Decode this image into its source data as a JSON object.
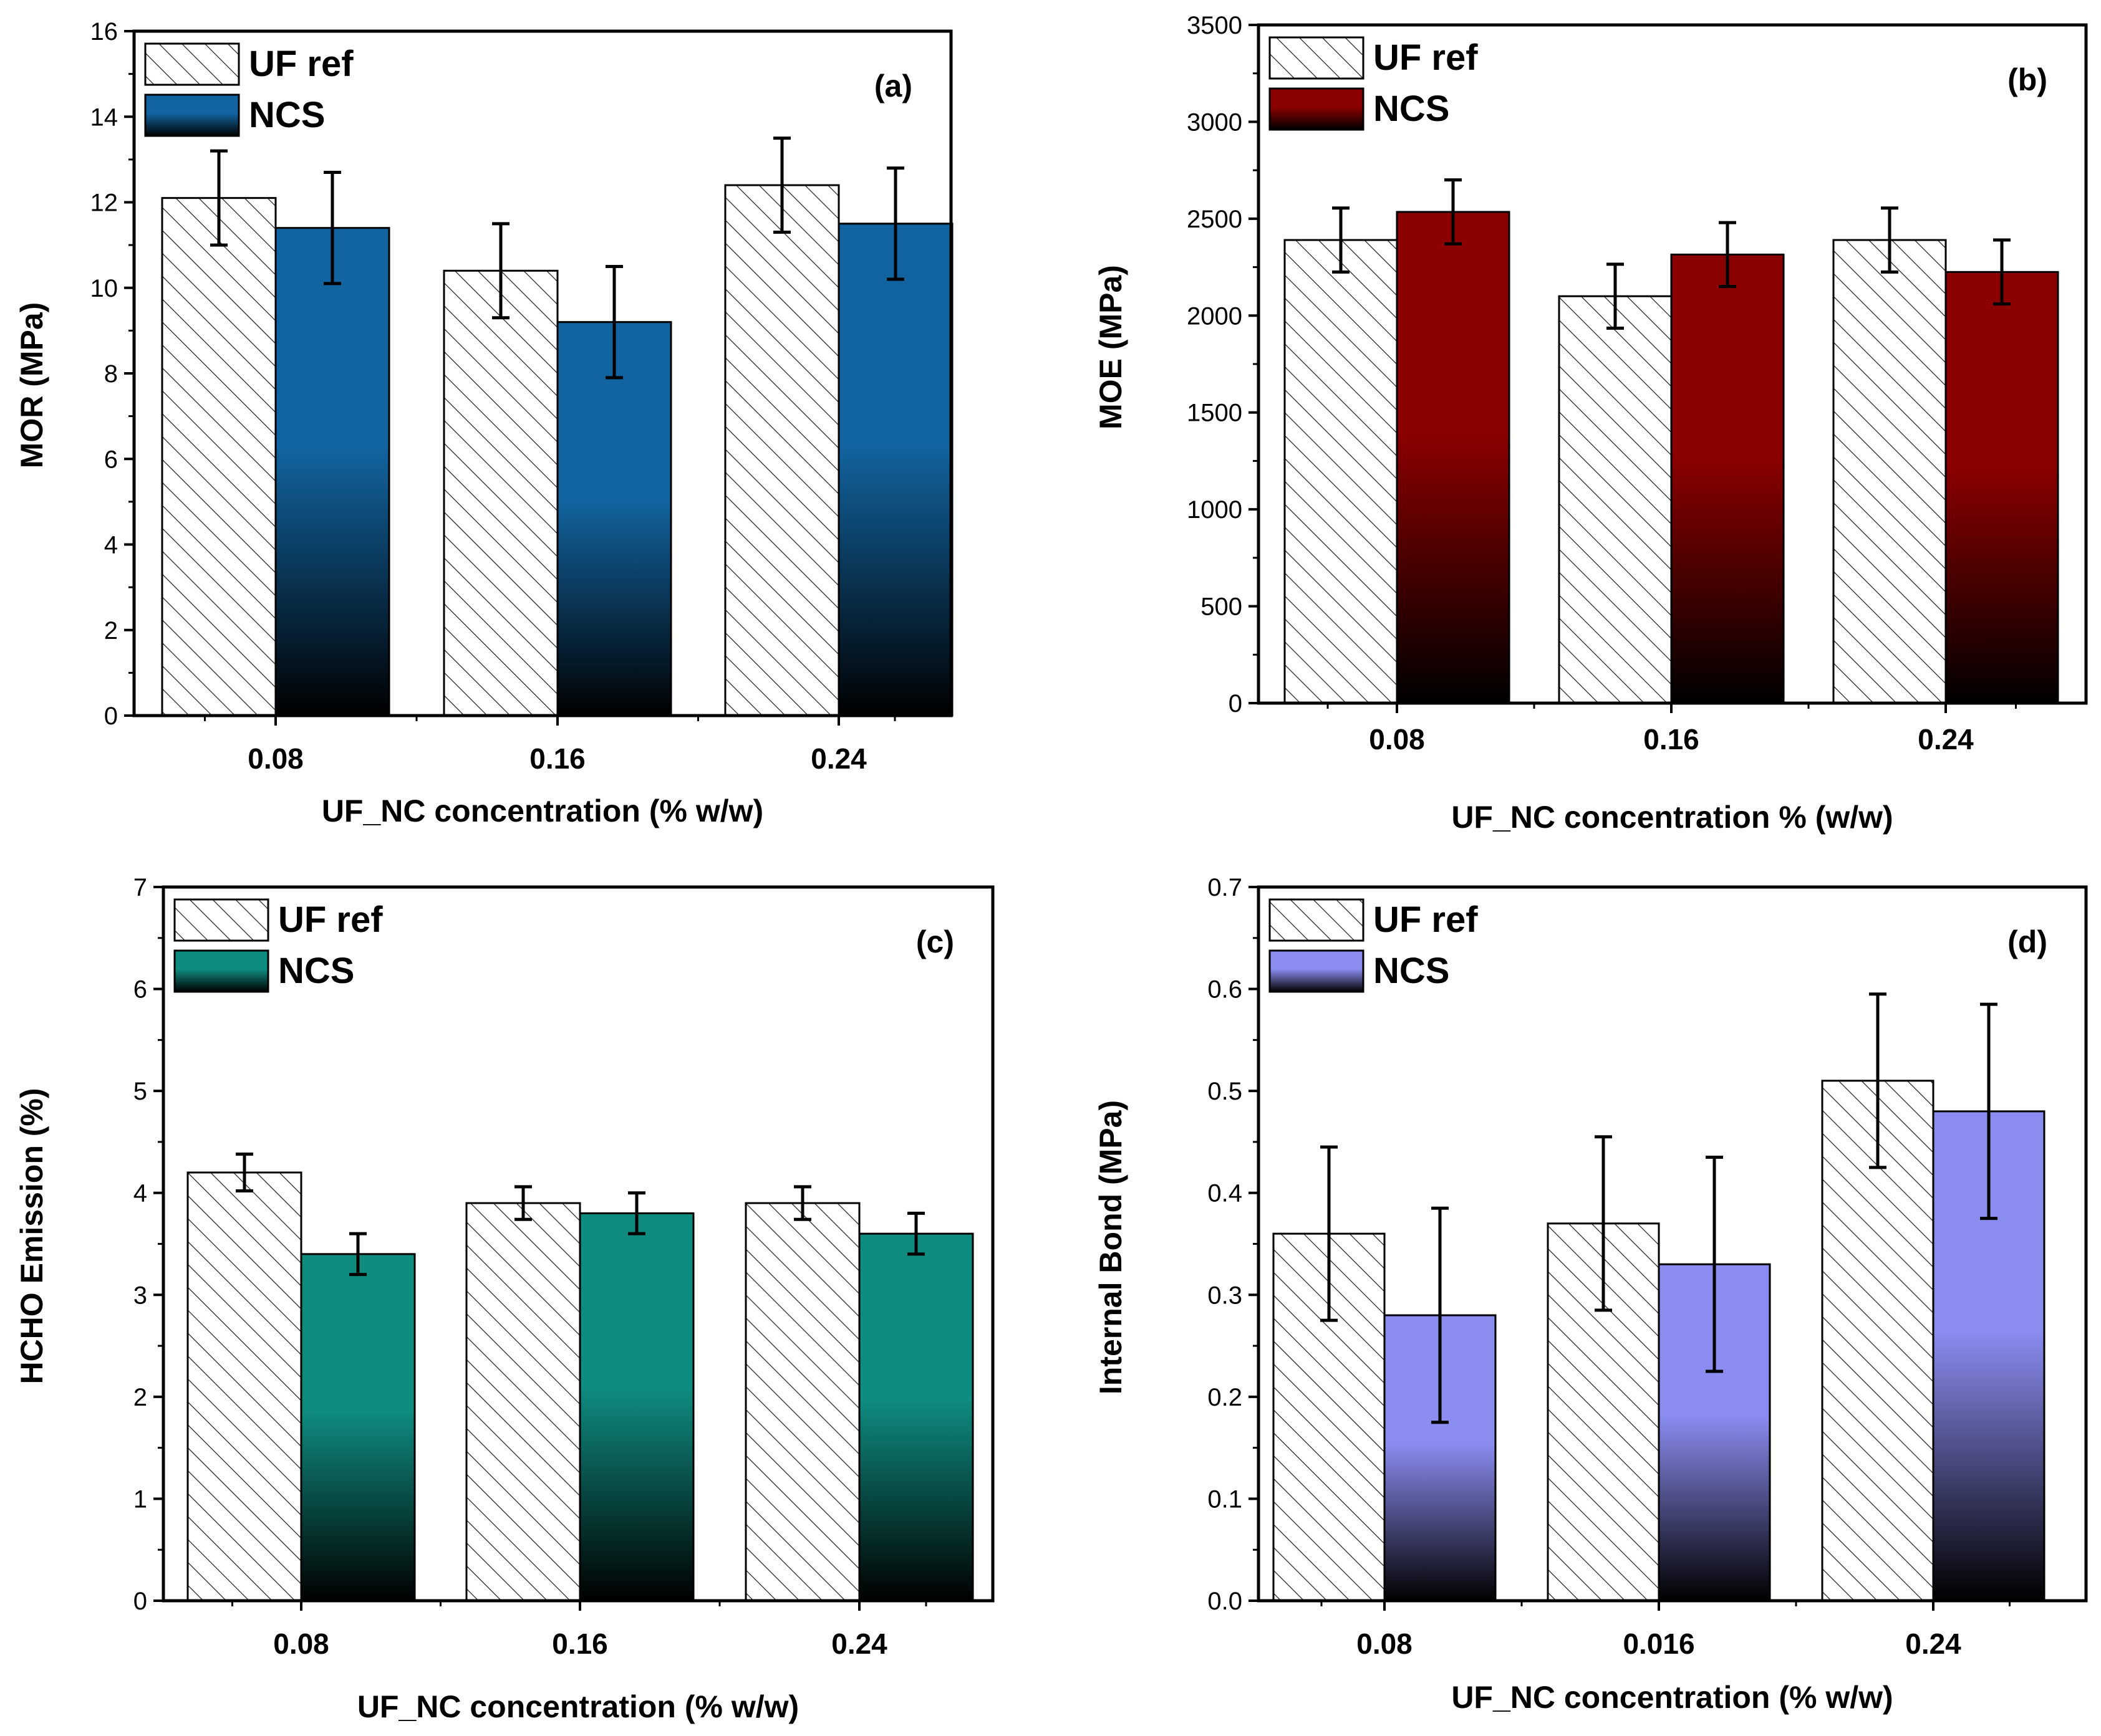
{
  "chart_data": [
    {
      "id": "a",
      "type": "bar",
      "panel_label": "(a)",
      "xlabel": "UF_NC concentration (% w/w)",
      "ylabel": "MOR (MPa)",
      "categories": [
        "0.08",
        "0.16",
        "0.24"
      ],
      "ylim": [
        0,
        16
      ],
      "yticks": [
        0,
        2,
        4,
        6,
        8,
        10,
        12,
        14,
        16
      ],
      "legend_position": "top-left",
      "series": [
        {
          "name": "UF ref",
          "values": [
            12.1,
            10.4,
            12.4
          ],
          "errors": [
            1.1,
            1.1,
            1.1
          ],
          "style": "hatch"
        },
        {
          "name": "NCS",
          "values": [
            11.4,
            9.2,
            11.5
          ],
          "errors": [
            1.3,
            1.3,
            1.3
          ],
          "style": "gradient",
          "color": "#1264a0"
        }
      ]
    },
    {
      "id": "b",
      "type": "bar",
      "panel_label": "(b)",
      "xlabel": "UF_NC concentration % (w/w)",
      "ylabel": "MOE (MPa)",
      "categories": [
        "0.08",
        "0.16",
        "0.24"
      ],
      "ylim": [
        0,
        3500
      ],
      "yticks": [
        0,
        500,
        1000,
        1500,
        2000,
        2500,
        3000,
        3500
      ],
      "legend_position": "top-left",
      "series": [
        {
          "name": "UF ref",
          "values": [
            2390,
            2100,
            2390
          ],
          "errors": [
            165,
            165,
            165
          ],
          "style": "hatch"
        },
        {
          "name": "NCS",
          "values": [
            2535,
            2315,
            2225
          ],
          "errors": [
            165,
            165,
            165
          ],
          "style": "gradient",
          "color": "#8b0000"
        }
      ]
    },
    {
      "id": "c",
      "type": "bar",
      "panel_label": "(c)",
      "xlabel": "UF_NC concentration (% w/w)",
      "ylabel": "HCHO Emission (%)",
      "categories": [
        "0.08",
        "0.16",
        "0.24"
      ],
      "ylim": [
        0,
        7
      ],
      "yticks": [
        0,
        1,
        2,
        3,
        4,
        5,
        6,
        7
      ],
      "legend_position": "top-left",
      "series": [
        {
          "name": "UF ref",
          "values": [
            4.2,
            3.9,
            3.9
          ],
          "errors": [
            0.18,
            0.16,
            0.16
          ],
          "style": "hatch"
        },
        {
          "name": "NCS",
          "values": [
            3.4,
            3.8,
            3.6
          ],
          "errors": [
            0.2,
            0.2,
            0.2
          ],
          "style": "gradient",
          "color": "#0f8c80"
        }
      ]
    },
    {
      "id": "d",
      "type": "bar",
      "panel_label": "(d)",
      "xlabel": "UF_NC concentration (% w/w)",
      "ylabel": "Internal Bond (MPa)",
      "categories": [
        "0.08",
        "0.016",
        "0.24"
      ],
      "ylim": [
        0,
        0.7
      ],
      "yticks": [
        "0.0",
        "0.1",
        "0.2",
        "0.3",
        "0.4",
        "0.5",
        "0.6",
        "0.7"
      ],
      "legend_position": "top-left",
      "series": [
        {
          "name": "UF ref",
          "values": [
            0.36,
            0.37,
            0.51
          ],
          "errors": [
            0.085,
            0.085,
            0.085
          ],
          "style": "hatch"
        },
        {
          "name": "NCS",
          "values": [
            0.28,
            0.33,
            0.48
          ],
          "errors": [
            0.105,
            0.105,
            0.105
          ],
          "style": "gradient",
          "color": "#8a8cf0"
        }
      ]
    }
  ]
}
